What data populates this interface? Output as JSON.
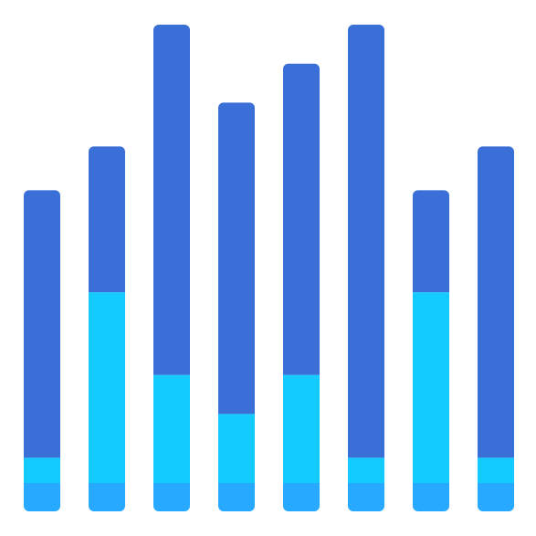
{
  "icon": {
    "name": "audio-equalizer-bars-icon",
    "colors": {
      "background": "#ffffff",
      "bar_top": "#3a6fd8",
      "bar_middle": "#14cbff",
      "bar_base": "#27a9ff"
    },
    "bars": [
      {
        "id": "bar-1",
        "overall_level": 0.66,
        "cyan_segment_level": 0.11
      },
      {
        "id": "bar-2",
        "overall_level": 0.75,
        "cyan_segment_level": 0.45
      },
      {
        "id": "bar-3",
        "overall_level": 1.0,
        "cyan_segment_level": 0.28
      },
      {
        "id": "bar-4",
        "overall_level": 0.84,
        "cyan_segment_level": 0.2
      },
      {
        "id": "bar-5",
        "overall_level": 0.92,
        "cyan_segment_level": 0.28
      },
      {
        "id": "bar-6",
        "overall_level": 1.0,
        "cyan_segment_level": 0.11
      },
      {
        "id": "bar-7",
        "overall_level": 0.66,
        "cyan_segment_level": 0.45
      },
      {
        "id": "bar-8",
        "overall_level": 0.75,
        "cyan_segment_level": 0.11
      }
    ]
  }
}
